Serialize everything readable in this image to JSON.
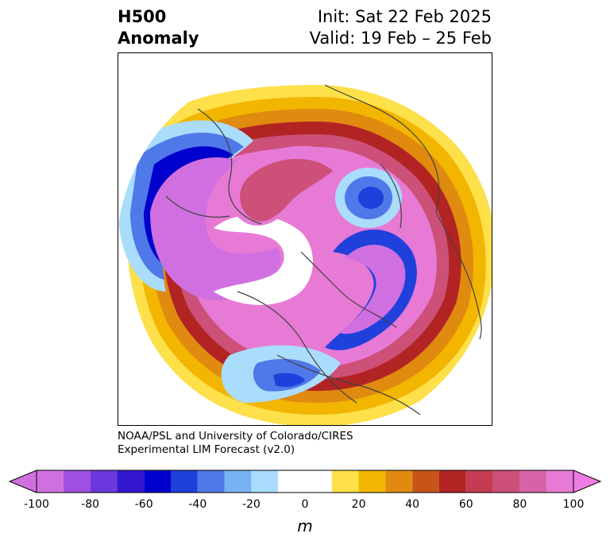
{
  "title": {
    "left_line1": "H500",
    "left_line2": "Anomaly",
    "right_line1": "Init: Sat 22 Feb 2025",
    "right_line2": "Valid: 19 Feb – 25 Feb"
  },
  "credit": {
    "line1": "NOAA/PSL and University of Colorado/CIRES",
    "line2": "Experimental LIM Forecast (v2.0)"
  },
  "colorbar": {
    "unit": "m",
    "tick_labels": [
      "-100",
      "-80",
      "-60",
      "-40",
      "-20",
      "0",
      "20",
      "40",
      "60",
      "80",
      "100"
    ],
    "levels": [
      -100,
      -90,
      -80,
      -70,
      -60,
      -50,
      -40,
      -30,
      -20,
      -10,
      10,
      20,
      30,
      40,
      50,
      60,
      70,
      80,
      90,
      100
    ],
    "colors": [
      "#d070e0",
      "#a050e0",
      "#6a38dc",
      "#3318d0",
      "#0000cc",
      "#2040dc",
      "#4f78e8",
      "#78b2f2",
      "#aadcfc",
      "#ffffff",
      "#fde04a",
      "#f2b500",
      "#e08a10",
      "#c85518",
      "#b22424",
      "#c53c52",
      "#cc5078",
      "#d862a8",
      "#e77ad5"
    ],
    "extend_low_color": "#d070e0",
    "extend_high_color": "#ee7de2"
  }
}
